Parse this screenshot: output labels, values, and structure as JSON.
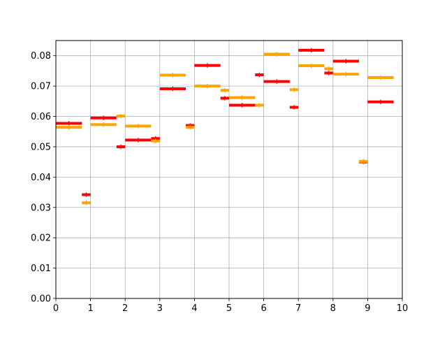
{
  "chart_data": {
    "type": "bar",
    "title": "",
    "xlabel": "",
    "ylabel": "",
    "xlim": [
      0,
      10
    ],
    "ylim": [
      0,
      0.085
    ],
    "grid": true,
    "x_ticks": [
      "0",
      "1",
      "2",
      "3",
      "4",
      "5",
      "6",
      "7",
      "8",
      "9",
      "10"
    ],
    "y_ticks": [
      "0.00",
      "0.01",
      "0.02",
      "0.03",
      "0.04",
      "0.05",
      "0.06",
      "0.07",
      "0.08"
    ],
    "series": [
      {
        "color": "#ff0000",
        "bins": [
          {
            "x0": 0.0,
            "x1": 0.75,
            "y": 0.0577,
            "err": 0.0003
          },
          {
            "x0": 0.75,
            "x1": 1.0,
            "y": 0.0342,
            "err": 0.0003
          },
          {
            "x0": 1.0,
            "x1": 1.75,
            "y": 0.0595,
            "err": 0.0003
          },
          {
            "x0": 1.75,
            "x1": 2.0,
            "y": 0.05,
            "err": 0.0003
          },
          {
            "x0": 2.0,
            "x1": 2.75,
            "y": 0.0522,
            "err": 0.0003
          },
          {
            "x0": 2.75,
            "x1": 3.0,
            "y": 0.0527,
            "err": 0.0003
          },
          {
            "x0": 3.0,
            "x1": 3.75,
            "y": 0.0691,
            "err": 0.0003
          },
          {
            "x0": 3.75,
            "x1": 4.0,
            "y": 0.057,
            "err": 0.0003
          },
          {
            "x0": 4.0,
            "x1": 4.75,
            "y": 0.0768,
            "err": 0.0003
          },
          {
            "x0": 4.75,
            "x1": 5.0,
            "y": 0.066,
            "err": 0.0003
          },
          {
            "x0": 5.0,
            "x1": 5.75,
            "y": 0.0637,
            "err": 0.0003
          },
          {
            "x0": 5.75,
            "x1": 6.0,
            "y": 0.0737,
            "err": 0.0003
          },
          {
            "x0": 6.0,
            "x1": 6.75,
            "y": 0.0715,
            "err": 0.0003
          },
          {
            "x0": 6.75,
            "x1": 7.0,
            "y": 0.063,
            "err": 0.0003
          },
          {
            "x0": 7.0,
            "x1": 7.75,
            "y": 0.0818,
            "err": 0.0003
          },
          {
            "x0": 7.75,
            "x1": 8.0,
            "y": 0.0743,
            "err": 0.0003
          },
          {
            "x0": 8.0,
            "x1": 8.75,
            "y": 0.0782,
            "err": 0.0003
          },
          {
            "x0": 8.75,
            "x1": 9.0,
            "y": 0.045,
            "err": 0.0003
          },
          {
            "x0": 9.0,
            "x1": 9.75,
            "y": 0.0648,
            "err": 0.0003
          }
        ]
      },
      {
        "color": "#ffa500",
        "bins": [
          {
            "x0": 0.0,
            "x1": 0.75,
            "y": 0.0564,
            "err": 0.0003
          },
          {
            "x0": 0.75,
            "x1": 1.0,
            "y": 0.0315,
            "err": 0.0003
          },
          {
            "x0": 1.0,
            "x1": 1.75,
            "y": 0.0573,
            "err": 0.0003
          },
          {
            "x0": 1.75,
            "x1": 2.0,
            "y": 0.0601,
            "err": 0.0003
          },
          {
            "x0": 2.0,
            "x1": 2.75,
            "y": 0.0568,
            "err": 0.0003
          },
          {
            "x0": 2.75,
            "x1": 3.0,
            "y": 0.0519,
            "err": 0.0003
          },
          {
            "x0": 3.0,
            "x1": 3.75,
            "y": 0.0736,
            "err": 0.0003
          },
          {
            "x0": 3.75,
            "x1": 4.0,
            "y": 0.0564,
            "err": 0.0003
          },
          {
            "x0": 4.0,
            "x1": 4.75,
            "y": 0.07,
            "err": 0.0003
          },
          {
            "x0": 4.75,
            "x1": 5.0,
            "y": 0.0686,
            "err": 0.0003
          },
          {
            "x0": 5.0,
            "x1": 5.75,
            "y": 0.0662,
            "err": 0.0003
          },
          {
            "x0": 5.75,
            "x1": 6.0,
            "y": 0.0637,
            "err": 0.0003
          },
          {
            "x0": 6.0,
            "x1": 6.75,
            "y": 0.0805,
            "err": 0.0003
          },
          {
            "x0": 6.75,
            "x1": 7.0,
            "y": 0.0688,
            "err": 0.0003
          },
          {
            "x0": 7.0,
            "x1": 7.75,
            "y": 0.0767,
            "err": 0.0003
          },
          {
            "x0": 7.75,
            "x1": 8.0,
            "y": 0.0757,
            "err": 0.0003
          },
          {
            "x0": 8.0,
            "x1": 8.75,
            "y": 0.0739,
            "err": 0.0003
          },
          {
            "x0": 8.75,
            "x1": 9.0,
            "y": 0.0452,
            "err": 0.0003
          },
          {
            "x0": 9.0,
            "x1": 9.75,
            "y": 0.0728,
            "err": 0.0003
          }
        ]
      }
    ]
  }
}
